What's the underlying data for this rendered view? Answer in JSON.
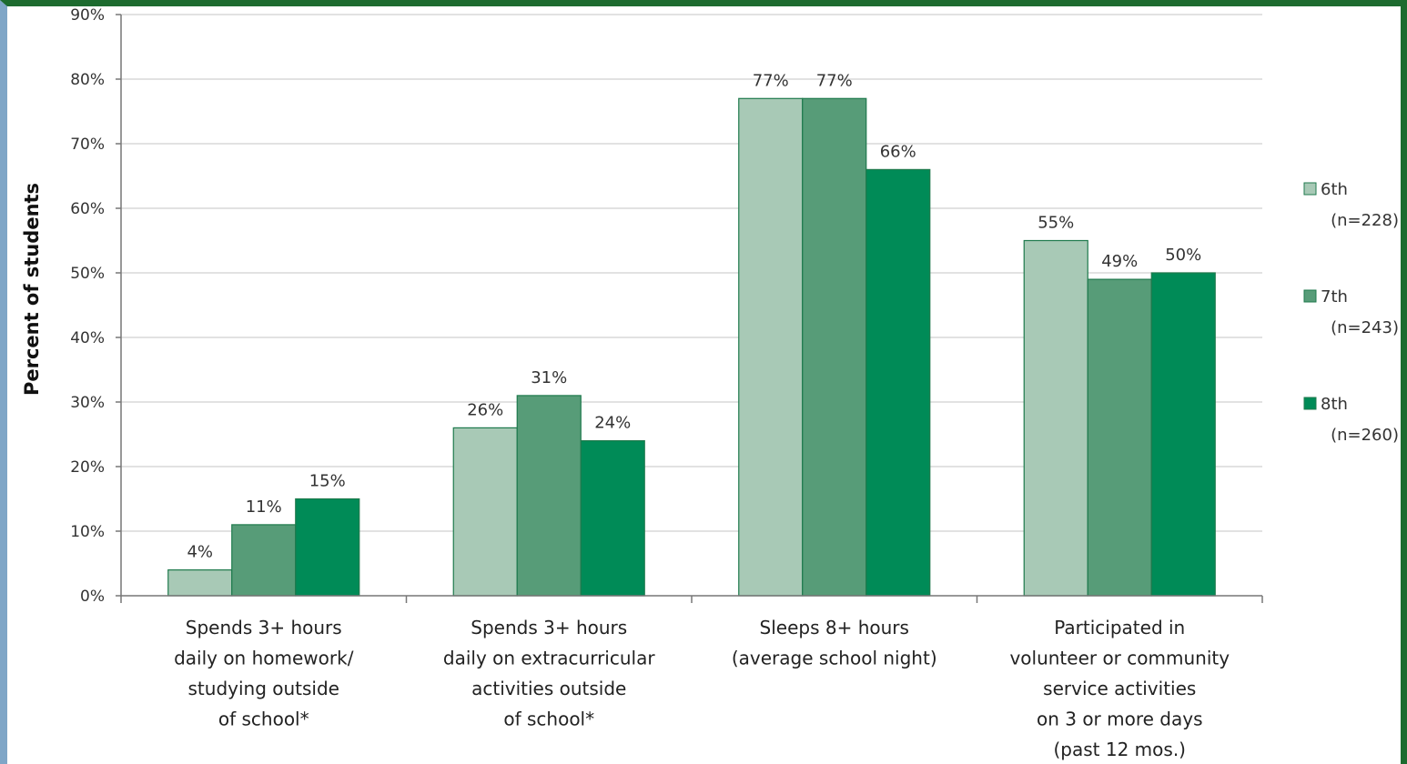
{
  "chart_data": {
    "type": "bar",
    "ylabel": "Percent of students",
    "ylim": [
      0,
      90
    ],
    "y_ticks": [
      "0%",
      "10%",
      "20%",
      "30%",
      "40%",
      "50%",
      "60%",
      "70%",
      "80%",
      "90%"
    ],
    "grid": true,
    "legend_position": "right",
    "categories": [
      [
        "Spends 3+ hours",
        "daily on homework/",
        "studying outside",
        "of school*"
      ],
      [
        "Spends 3+ hours",
        "daily on extracurricular",
        "activities outside",
        "of school*"
      ],
      [
        "Sleeps 8+ hours",
        "(average school night)"
      ],
      [
        "Participated in",
        "volunteer or community",
        "service activities",
        "on 3 or more days",
        "(past 12 mos.)"
      ]
    ],
    "series": [
      {
        "name": "6th",
        "n_label": "(n=228)",
        "color": "#a8c9b6",
        "values": [
          4,
          26,
          77,
          55
        ],
        "labels": [
          "4%",
          "26%",
          "77%",
          "55%"
        ]
      },
      {
        "name": "7th",
        "n_label": "(n=243)",
        "color": "#579c78",
        "values": [
          11,
          31,
          77,
          49
        ],
        "labels": [
          "11%",
          "31%",
          "77%",
          "49%"
        ]
      },
      {
        "name": "8th",
        "n_label": "(n=260)",
        "color": "#008b57",
        "values": [
          15,
          24,
          66,
          50
        ],
        "labels": [
          "15%",
          "24%",
          "66%",
          "50%"
        ]
      }
    ]
  }
}
